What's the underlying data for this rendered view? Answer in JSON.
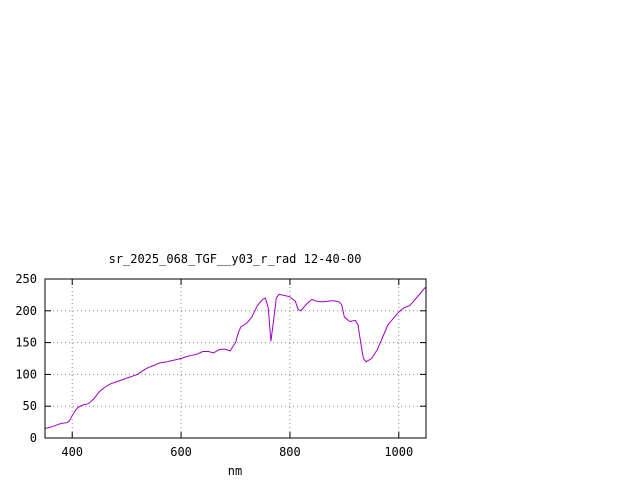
{
  "chart_data": {
    "type": "line",
    "title": "sr_2025_068_TGF__y03_r_rad 12-40-00",
    "xlabel": "nm",
    "ylabel": "",
    "xlim": [
      350,
      1050
    ],
    "ylim": [
      0,
      250
    ],
    "xticks": [
      400,
      600,
      800,
      1000
    ],
    "yticks": [
      0,
      50,
      100,
      150,
      200,
      250
    ],
    "grid": true,
    "legend": "none",
    "series": [
      {
        "color": "#a000c0",
        "points": [
          [
            350,
            15
          ],
          [
            360,
            17
          ],
          [
            370,
            20
          ],
          [
            380,
            23
          ],
          [
            390,
            24
          ],
          [
            395,
            27
          ],
          [
            400,
            35
          ],
          [
            405,
            42
          ],
          [
            410,
            48
          ],
          [
            420,
            52
          ],
          [
            430,
            54
          ],
          [
            440,
            62
          ],
          [
            450,
            73
          ],
          [
            460,
            80
          ],
          [
            470,
            85
          ],
          [
            480,
            88
          ],
          [
            490,
            91
          ],
          [
            500,
            94
          ],
          [
            510,
            97
          ],
          [
            520,
            100
          ],
          [
            530,
            106
          ],
          [
            540,
            111
          ],
          [
            550,
            114
          ],
          [
            560,
            118
          ],
          [
            570,
            119
          ],
          [
            580,
            121
          ],
          [
            590,
            123
          ],
          [
            600,
            125
          ],
          [
            610,
            128
          ],
          [
            620,
            130
          ],
          [
            630,
            132
          ],
          [
            640,
            136
          ],
          [
            650,
            136
          ],
          [
            660,
            134
          ],
          [
            670,
            139
          ],
          [
            680,
            140
          ],
          [
            690,
            137
          ],
          [
            700,
            150
          ],
          [
            705,
            165
          ],
          [
            710,
            175
          ],
          [
            720,
            180
          ],
          [
            730,
            190
          ],
          [
            740,
            208
          ],
          [
            750,
            218
          ],
          [
            755,
            220
          ],
          [
            760,
            205
          ],
          [
            765,
            152
          ],
          [
            770,
            185
          ],
          [
            775,
            220
          ],
          [
            780,
            226
          ],
          [
            790,
            224
          ],
          [
            800,
            222
          ],
          [
            810,
            215
          ],
          [
            815,
            202
          ],
          [
            820,
            200
          ],
          [
            830,
            210
          ],
          [
            840,
            218
          ],
          [
            850,
            215
          ],
          [
            860,
            214
          ],
          [
            870,
            215
          ],
          [
            880,
            216
          ],
          [
            890,
            214
          ],
          [
            895,
            210
          ],
          [
            900,
            190
          ],
          [
            910,
            183
          ],
          [
            920,
            185
          ],
          [
            925,
            178
          ],
          [
            930,
            150
          ],
          [
            935,
            125
          ],
          [
            940,
            120
          ],
          [
            950,
            125
          ],
          [
            960,
            138
          ],
          [
            970,
            158
          ],
          [
            980,
            178
          ],
          [
            990,
            188
          ],
          [
            1000,
            198
          ],
          [
            1010,
            205
          ],
          [
            1020,
            208
          ],
          [
            1030,
            218
          ],
          [
            1040,
            228
          ],
          [
            1048,
            236
          ],
          [
            1050,
            237
          ]
        ]
      }
    ]
  }
}
